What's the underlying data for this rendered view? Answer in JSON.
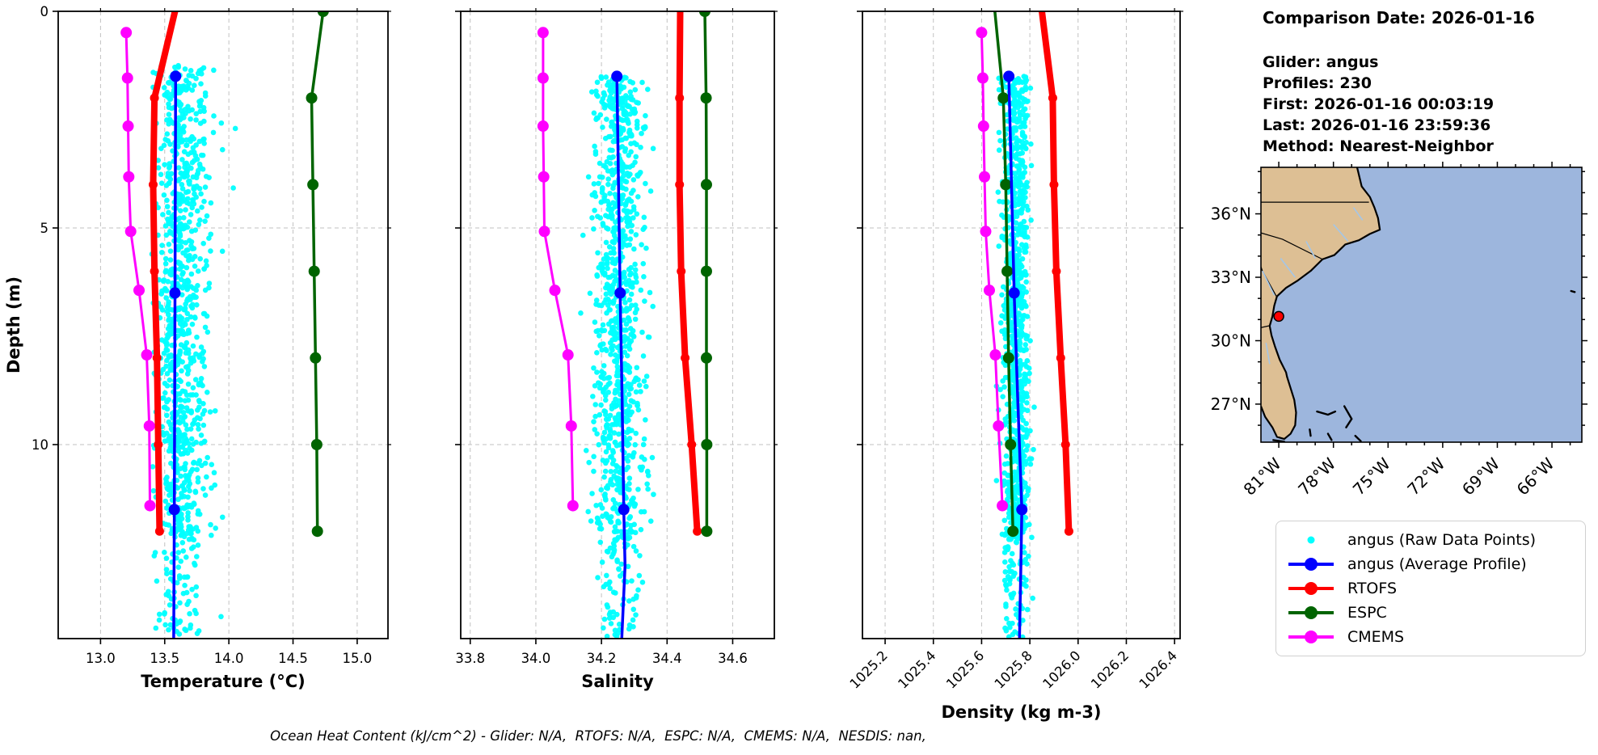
{
  "info": {
    "title": "Comparison Date: 2026-01-16",
    "lines": [
      "Glider: angus",
      "Profiles: 230",
      "First: 2026-01-16 00:03:19",
      "Last: 2026-01-16 23:59:36",
      "Method: Nearest-Neighbor"
    ]
  },
  "caption": "Ocean Heat Content (kJ/cm^2) - Glider: N/A,  RTOFS: N/A,  ESPC: N/A,  CMEMS: N/A,  NESDIS: nan,",
  "colors": {
    "raw": "#00ffff",
    "average": "#0000ff",
    "rtofs": "#ff0000",
    "espc": "#006400",
    "cmems": "#ff00ff",
    "grid": "#c2c2c2",
    "frame": "#000000"
  },
  "legend": [
    {
      "label": "angus (Raw Data Points)",
      "color": "#00ffff",
      "style": "dot"
    },
    {
      "label": "angus (Average Profile)",
      "color": "#0000ff",
      "style": "line-dot"
    },
    {
      "label": "RTOFS",
      "color": "#ff0000",
      "style": "line-dot"
    },
    {
      "label": "ESPC",
      "color": "#006400",
      "style": "line-dot"
    },
    {
      "label": "CMEMS",
      "color": "#ff00ff",
      "style": "line-dot"
    }
  ],
  "chart_data": [
    {
      "type": "scatter",
      "xlabel": "Temperature (°C)",
      "ylabel": "Depth (m)",
      "xticks": [
        13.0,
        13.5,
        14.0,
        14.5,
        15.0
      ],
      "xtick_labels": [
        "13.0",
        "13.5",
        "14.0",
        "14.5",
        "15.0"
      ],
      "xlim": [
        12.67,
        15.24
      ],
      "ylim": [
        0,
        14.45
      ],
      "yticks": [
        0,
        5,
        10
      ],
      "rotate_xticks": false,
      "grid": "dashed",
      "cloud": {
        "name": "angus raw data points",
        "n_profiles": 55,
        "pts_per_profile": 20,
        "center": 13.64,
        "sd": 0.085,
        "vmin": 13.4,
        "vmax": 13.96,
        "dmin": 1.25,
        "dmax": 14.45,
        "deep_thin": 12.2,
        "out_frac": 0.02,
        "out_shift": 0.3,
        "out_dmax": 4.8,
        "seed": 11
      },
      "series": [
        {
          "name": "RTOFS",
          "color": "#ff0000",
          "lw": 8,
          "mr": 5.5,
          "points": [
            [
              13.58,
              0
            ],
            [
              13.42,
              2
            ],
            [
              13.41,
              4
            ],
            [
              13.42,
              6
            ],
            [
              13.44,
              8
            ],
            [
              13.45,
              10
            ],
            [
              13.46,
              12
            ]
          ],
          "markers": [
            [
              13.42,
              2
            ],
            [
              13.41,
              4
            ],
            [
              13.42,
              6
            ],
            [
              13.44,
              8
            ],
            [
              13.45,
              10
            ],
            [
              13.46,
              12
            ]
          ]
        },
        {
          "name": "ESPC",
          "color": "#006400",
          "lw": 3.5,
          "mr": 7,
          "points": [
            [
              14.735,
              0
            ],
            [
              14.645,
              2
            ],
            [
              14.655,
              4
            ],
            [
              14.665,
              6
            ],
            [
              14.675,
              8
            ],
            [
              14.685,
              10
            ],
            [
              14.69,
              12
            ]
          ],
          "markers": [
            [
              14.735,
              0
            ],
            [
              14.645,
              2
            ],
            [
              14.655,
              4
            ],
            [
              14.665,
              6
            ],
            [
              14.675,
              8
            ],
            [
              14.685,
              10
            ],
            [
              14.69,
              12
            ]
          ]
        },
        {
          "name": "CMEMS",
          "color": "#ff00ff",
          "lw": 3,
          "mr": 7,
          "points": [
            [
              13.2,
              0.49
            ],
            [
              13.21,
              1.54
            ],
            [
              13.215,
              2.65
            ],
            [
              13.22,
              3.82
            ],
            [
              13.235,
              5.08
            ],
            [
              13.3,
              6.44
            ],
            [
              13.36,
              7.93
            ],
            [
              13.38,
              9.57
            ],
            [
              13.385,
              11.41
            ]
          ],
          "markers": [
            [
              13.2,
              0.49
            ],
            [
              13.21,
              1.54
            ],
            [
              13.215,
              2.65
            ],
            [
              13.22,
              3.82
            ],
            [
              13.235,
              5.08
            ],
            [
              13.3,
              6.44
            ],
            [
              13.36,
              7.93
            ],
            [
              13.38,
              9.57
            ],
            [
              13.385,
              11.41
            ]
          ]
        },
        {
          "name": "angus (Average Profile)",
          "color": "#0000ff",
          "lw": 3.5,
          "mr": 7,
          "points": [
            [
              13.585,
              1.5
            ],
            [
              13.58,
              6.5
            ],
            [
              13.575,
              11.5
            ],
            [
              13.57,
              14.45
            ]
          ],
          "markers": [
            [
              13.585,
              1.5
            ],
            [
              13.58,
              6.5
            ],
            [
              13.575,
              11.5
            ]
          ]
        }
      ]
    },
    {
      "type": "scatter",
      "xlabel": "Salinity",
      "ylabel": "Depth (m)",
      "xticks": [
        33.8,
        34.0,
        34.2,
        34.4,
        34.6
      ],
      "xtick_labels": [
        "33.8",
        "34.0",
        "34.2",
        "34.4",
        "34.6"
      ],
      "xlim": [
        33.771,
        34.727
      ],
      "ylim": [
        0,
        14.45
      ],
      "yticks": [
        0,
        5,
        10
      ],
      "rotate_xticks": false,
      "grid": "dashed",
      "cloud": {
        "name": "angus raw data points",
        "n_profiles": 55,
        "pts_per_profile": 20,
        "center": 34.25,
        "sd": 0.042,
        "vmin": 34.135,
        "vmax": 34.36,
        "dmin": 1.5,
        "dmax": 14.45,
        "deep_thin": 12.2,
        "out_frac": 0,
        "out_shift": 0,
        "out_dmax": 0,
        "seed": 22
      },
      "series": [
        {
          "name": "RTOFS",
          "color": "#ff0000",
          "lw": 8,
          "mr": 5.5,
          "points": [
            [
              34.44,
              0
            ],
            [
              34.438,
              2
            ],
            [
              34.438,
              4
            ],
            [
              34.443,
              6
            ],
            [
              34.455,
              8
            ],
            [
              34.475,
              10
            ],
            [
              34.492,
              12
            ]
          ],
          "markers": [
            [
              34.438,
              2
            ],
            [
              34.438,
              4
            ],
            [
              34.443,
              6
            ],
            [
              34.455,
              8
            ],
            [
              34.475,
              10
            ],
            [
              34.492,
              12
            ]
          ]
        },
        {
          "name": "ESPC",
          "color": "#006400",
          "lw": 3.5,
          "mr": 7,
          "points": [
            [
              34.515,
              0
            ],
            [
              34.519,
              2
            ],
            [
              34.52,
              4
            ],
            [
              34.52,
              6
            ],
            [
              34.52,
              8
            ],
            [
              34.521,
              10
            ],
            [
              34.521,
              12
            ]
          ],
          "markers": [
            [
              34.515,
              0
            ],
            [
              34.519,
              2
            ],
            [
              34.52,
              4
            ],
            [
              34.52,
              6
            ],
            [
              34.52,
              8
            ],
            [
              34.521,
              10
            ],
            [
              34.521,
              12
            ]
          ]
        },
        {
          "name": "CMEMS",
          "color": "#ff00ff",
          "lw": 3,
          "mr": 7,
          "points": [
            [
              34.022,
              0.49
            ],
            [
              34.022,
              1.54
            ],
            [
              34.022,
              2.65
            ],
            [
              34.024,
              3.82
            ],
            [
              34.026,
              5.08
            ],
            [
              34.058,
              6.44
            ],
            [
              34.098,
              7.93
            ],
            [
              34.108,
              9.57
            ],
            [
              34.113,
              11.41
            ]
          ],
          "markers": [
            [
              34.022,
              0.49
            ],
            [
              34.022,
              1.54
            ],
            [
              34.022,
              2.65
            ],
            [
              34.024,
              3.82
            ],
            [
              34.026,
              5.08
            ],
            [
              34.058,
              6.44
            ],
            [
              34.098,
              7.93
            ],
            [
              34.108,
              9.57
            ],
            [
              34.113,
              11.41
            ]
          ]
        },
        {
          "name": "angus (Average Profile)",
          "color": "#0000ff",
          "lw": 3.5,
          "mr": 7,
          "points": [
            [
              34.247,
              1.5
            ],
            [
              34.252,
              4
            ],
            [
              34.257,
              6.5
            ],
            [
              34.263,
              9
            ],
            [
              34.268,
              11.5
            ],
            [
              34.272,
              12.8
            ],
            [
              34.262,
              14.45
            ]
          ],
          "markers": [
            [
              34.247,
              1.5
            ],
            [
              34.257,
              6.5
            ],
            [
              34.268,
              11.5
            ]
          ]
        }
      ]
    },
    {
      "type": "scatter",
      "xlabel": "Density (kg m-3)",
      "ylabel": "Depth (m)",
      "xticks": [
        1025.2,
        1025.4,
        1025.6,
        1025.8,
        1026.0,
        1026.2,
        1026.4
      ],
      "xtick_labels": [
        "1025.2",
        "1025.4",
        "1025.6",
        "1025.8",
        "1026.0",
        "1026.2",
        "1026.4"
      ],
      "xlim": [
        1025.106,
        1026.423
      ],
      "ylim": [
        0,
        14.45
      ],
      "yticks": [
        0,
        5,
        10
      ],
      "rotate_xticks": true,
      "grid": "dashed",
      "cloud": {
        "name": "angus raw data points",
        "n_profiles": 55,
        "pts_per_profile": 20,
        "center": 1025.737,
        "sd": 0.027,
        "vmin": 1025.657,
        "vmax": 1025.822,
        "dmin": 1.5,
        "dmax": 14.45,
        "deep_thin": 12.2,
        "out_frac": 0,
        "out_shift": 0,
        "out_dmax": 0,
        "seed": 33
      },
      "series": [
        {
          "name": "RTOFS",
          "color": "#ff0000",
          "lw": 8,
          "mr": 5.5,
          "points": [
            [
              1025.85,
              0
            ],
            [
              1025.895,
              2
            ],
            [
              1025.9,
              4
            ],
            [
              1025.91,
              6
            ],
            [
              1025.928,
              8
            ],
            [
              1025.948,
              10
            ],
            [
              1025.962,
              12
            ]
          ],
          "markers": [
            [
              1025.895,
              2
            ],
            [
              1025.9,
              4
            ],
            [
              1025.91,
              6
            ],
            [
              1025.928,
              8
            ],
            [
              1025.948,
              10
            ],
            [
              1025.962,
              12
            ]
          ]
        },
        {
          "name": "ESPC",
          "color": "#006400",
          "lw": 3.5,
          "mr": 7,
          "points": [
            [
              1025.655,
              0
            ],
            [
              1025.69,
              2
            ],
            [
              1025.7,
              4
            ],
            [
              1025.706,
              6
            ],
            [
              1025.712,
              8
            ],
            [
              1025.72,
              10
            ],
            [
              1025.73,
              12
            ]
          ],
          "markers": [
            [
              1025.69,
              2
            ],
            [
              1025.7,
              4
            ],
            [
              1025.706,
              6
            ],
            [
              1025.712,
              8
            ],
            [
              1025.72,
              10
            ],
            [
              1025.73,
              12
            ]
          ]
        },
        {
          "name": "CMEMS",
          "color": "#ff00ff",
          "lw": 3,
          "mr": 7,
          "points": [
            [
              1025.6,
              0.49
            ],
            [
              1025.605,
              1.54
            ],
            [
              1025.608,
              2.65
            ],
            [
              1025.612,
              3.82
            ],
            [
              1025.617,
              5.08
            ],
            [
              1025.632,
              6.44
            ],
            [
              1025.657,
              7.93
            ],
            [
              1025.67,
              9.57
            ],
            [
              1025.686,
              11.41
            ]
          ],
          "markers": [
            [
              1025.6,
              0.49
            ],
            [
              1025.605,
              1.54
            ],
            [
              1025.608,
              2.65
            ],
            [
              1025.612,
              3.82
            ],
            [
              1025.617,
              5.08
            ],
            [
              1025.632,
              6.44
            ],
            [
              1025.657,
              7.93
            ],
            [
              1025.67,
              9.57
            ],
            [
              1025.686,
              11.41
            ]
          ]
        },
        {
          "name": "angus (Average Profile)",
          "color": "#0000ff",
          "lw": 3.5,
          "mr": 7,
          "points": [
            [
              1025.713,
              1.5
            ],
            [
              1025.724,
              4
            ],
            [
              1025.735,
              6.5
            ],
            [
              1025.75,
              9
            ],
            [
              1025.767,
              11.5
            ],
            [
              1025.762,
              13
            ],
            [
              1025.757,
              14.45
            ]
          ],
          "markers": [
            [
              1025.713,
              1.5
            ],
            [
              1025.735,
              6.5
            ],
            [
              1025.767,
              11.5
            ]
          ]
        }
      ]
    }
  ],
  "map": {
    "lat_tick_labels": [
      "36°N",
      "33°N",
      "30°N",
      "27°N"
    ],
    "lat_tick_values": [
      36,
      33,
      30,
      27
    ],
    "lon_tick_labels": [
      "81°W",
      "78°W",
      "75°W",
      "72°W",
      "69°W",
      "66°W"
    ],
    "lon_tick_values": [
      -81,
      -78,
      -75,
      -72,
      -69,
      -66
    ],
    "extent": {
      "lon_min": -81.98,
      "lon_max": -64.36,
      "lat_min": 25.2,
      "lat_max": 38.2
    },
    "land_color": "#ddbf94",
    "ocean_color": "#9db6dd",
    "river_color": "#a4c6e8",
    "glider_marker": {
      "lon": -81.0,
      "lat": 31.15,
      "color": "#ff0000"
    }
  }
}
